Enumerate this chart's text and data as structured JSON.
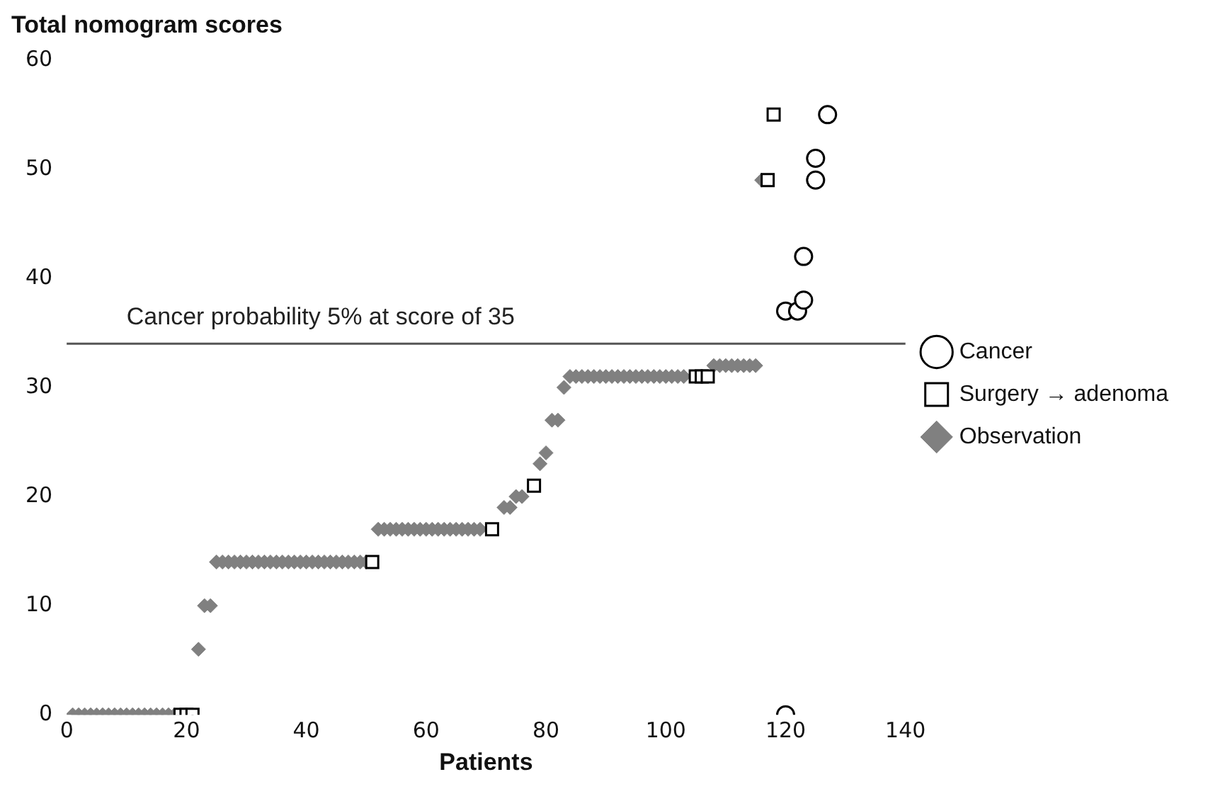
{
  "chart_data": {
    "type": "scatter",
    "ylabel": "Total nomogram scores",
    "xlabel": "Patients",
    "xlim": [
      0,
      140
    ],
    "xticks": [
      0,
      20,
      40,
      60,
      80,
      100,
      120,
      140
    ],
    "ylim": [
      0,
      60
    ],
    "yticks": [
      0,
      10,
      20,
      30,
      40,
      50,
      60
    ],
    "legend": "right",
    "ref_lines": [
      {
        "axis": "y",
        "value": 34,
        "label": "Cancer probability 5% at score of 35",
        "color": "#555555"
      }
    ],
    "series": [
      {
        "name": "Cancer",
        "color": "#000000",
        "marker": "circle",
        "x": [
          120,
          120,
          122,
          123,
          123,
          125,
          125,
          127
        ],
        "values": [
          0,
          37,
          37,
          38,
          42,
          49,
          51,
          55
        ]
      },
      {
        "name": "Surgery → adenoma",
        "color": "#000000",
        "marker": "square",
        "x": [
          19,
          20,
          21,
          51,
          71,
          78,
          105,
          106,
          107,
          117,
          118
        ],
        "values": [
          0,
          0,
          0,
          14,
          17,
          21,
          31,
          31,
          31,
          49,
          55
        ]
      },
      {
        "name": "Observation",
        "color": "#808080",
        "marker": "diamond",
        "x": [
          1,
          2,
          3,
          4,
          5,
          6,
          7,
          8,
          9,
          10,
          11,
          12,
          13,
          14,
          15,
          16,
          17,
          18,
          22,
          23,
          24,
          25,
          26,
          27,
          28,
          29,
          30,
          31,
          32,
          33,
          34,
          35,
          36,
          37,
          38,
          39,
          40,
          41,
          42,
          43,
          44,
          45,
          46,
          47,
          48,
          49,
          50,
          52,
          53,
          54,
          55,
          56,
          57,
          58,
          59,
          60,
          61,
          62,
          63,
          64,
          65,
          66,
          67,
          68,
          69,
          73,
          74,
          75,
          76,
          79,
          80,
          81,
          82,
          83,
          84,
          85,
          86,
          87,
          88,
          89,
          90,
          91,
          92,
          93,
          94,
          95,
          96,
          97,
          98,
          99,
          100,
          101,
          102,
          103,
          108,
          109,
          110,
          111,
          112,
          113,
          114,
          115,
          116
        ],
        "values": [
          0,
          0,
          0,
          0,
          0,
          0,
          0,
          0,
          0,
          0,
          0,
          0,
          0,
          0,
          0,
          0,
          0,
          0,
          6,
          10,
          10,
          14,
          14,
          14,
          14,
          14,
          14,
          14,
          14,
          14,
          14,
          14,
          14,
          14,
          14,
          14,
          14,
          14,
          14,
          14,
          14,
          14,
          14,
          14,
          14,
          14,
          14,
          17,
          17,
          17,
          17,
          17,
          17,
          17,
          17,
          17,
          17,
          17,
          17,
          17,
          17,
          17,
          17,
          17,
          17,
          19,
          19,
          20,
          20,
          23,
          24,
          27,
          27,
          30,
          31,
          31,
          31,
          31,
          31,
          31,
          31,
          31,
          31,
          31,
          31,
          31,
          31,
          31,
          31,
          31,
          31,
          31,
          31,
          31,
          32,
          32,
          32,
          32,
          32,
          32,
          32,
          32,
          49
        ]
      }
    ]
  }
}
